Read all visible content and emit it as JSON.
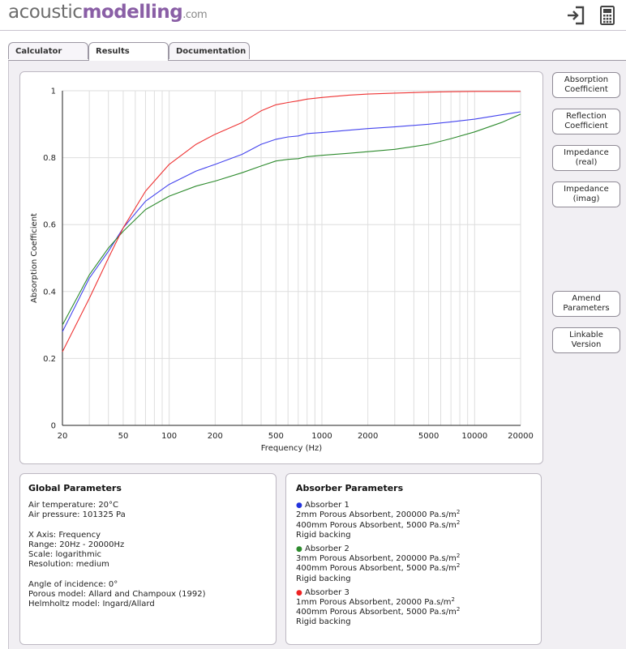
{
  "header": {
    "logo": {
      "part1": "acoustic",
      "part2": "modelling",
      "part3": ".com"
    },
    "icons": [
      "login-icon",
      "calculator-icon"
    ]
  },
  "tabs": [
    {
      "label": "Calculator",
      "active": false
    },
    {
      "label": "Results",
      "active": true
    },
    {
      "label": "Documentation",
      "active": false
    }
  ],
  "side_buttons": {
    "absorption": [
      "Absorption",
      "Coefficient"
    ],
    "reflection": [
      "Reflection",
      "Coefficient"
    ],
    "imp_real": [
      "Impedance",
      "(real)"
    ],
    "imp_imag": [
      "Impedance",
      "(imag)"
    ],
    "amend": [
      "Amend",
      "Parameters"
    ],
    "linkable": [
      "Linkable",
      "Version"
    ]
  },
  "chart_data": {
    "type": "line",
    "xlabel": "Frequency (Hz)",
    "ylabel": "Absorption Coefficient",
    "xscale": "log",
    "xlim": [
      20,
      20000
    ],
    "ylim": [
      0,
      1
    ],
    "xticks": [
      "20",
      "50",
      "100",
      "200",
      "500",
      "1000",
      "2000",
      "5000",
      "10000",
      "20000"
    ],
    "yticks": [
      "0",
      "0.2",
      "0.4",
      "0.6",
      "0.8",
      "1"
    ],
    "grid": true,
    "series": [
      {
        "color": "#4444ee",
        "x": [
          20,
          30,
          40,
          50,
          70,
          100,
          150,
          200,
          300,
          400,
          500,
          600,
          700,
          800,
          1000,
          1500,
          2000,
          3000,
          5000,
          7000,
          10000,
          15000,
          20000
        ],
        "values": [
          0.28,
          0.44,
          0.52,
          0.59,
          0.67,
          0.72,
          0.76,
          0.78,
          0.81,
          0.84,
          0.855,
          0.862,
          0.865,
          0.872,
          0.875,
          0.882,
          0.887,
          0.892,
          0.9,
          0.907,
          0.915,
          0.928,
          0.937
        ]
      },
      {
        "color": "#2e8b2e",
        "x": [
          20,
          30,
          40,
          50,
          70,
          100,
          150,
          200,
          300,
          400,
          500,
          600,
          700,
          800,
          1000,
          1500,
          2000,
          3000,
          5000,
          7000,
          10000,
          15000,
          20000
        ],
        "values": [
          0.3,
          0.45,
          0.53,
          0.58,
          0.645,
          0.685,
          0.715,
          0.73,
          0.755,
          0.775,
          0.79,
          0.795,
          0.797,
          0.803,
          0.807,
          0.813,
          0.818,
          0.825,
          0.84,
          0.857,
          0.877,
          0.905,
          0.93
        ]
      },
      {
        "color": "#ee3333",
        "x": [
          20,
          30,
          40,
          50,
          70,
          100,
          150,
          200,
          300,
          400,
          500,
          600,
          700,
          800,
          1000,
          1500,
          2000,
          3000,
          5000,
          7000,
          10000,
          15000,
          20000
        ],
        "values": [
          0.22,
          0.38,
          0.5,
          0.59,
          0.7,
          0.78,
          0.84,
          0.87,
          0.905,
          0.94,
          0.958,
          0.965,
          0.97,
          0.975,
          0.98,
          0.987,
          0.99,
          0.993,
          0.996,
          0.997,
          0.998,
          0.998,
          0.998
        ]
      }
    ]
  },
  "global": {
    "title": "Global Parameters",
    "lines": [
      "Air temperature: 20°C",
      "Air pressure: 101325 Pa",
      "",
      "X Axis: Frequency",
      "Range: 20Hz - 20000Hz",
      "Scale: logarithmic",
      "Resolution: medium",
      "",
      "Angle of incidence: 0°",
      "Porous model: Allard and Champoux (1992)",
      "Helmholtz model: Ingard/Allard"
    ]
  },
  "absorbers": {
    "title": "Absorber Parameters",
    "items": [
      {
        "name": "Absorber 1",
        "color": "#2233dd",
        "layers": [
          "2mm Porous Absorbent, 200000 Pa.s/m",
          "400mm Porous Absorbent, 5000 Pa.s/m"
        ],
        "backing": "Rigid backing"
      },
      {
        "name": "Absorber 2",
        "color": "#2e8b2e",
        "layers": [
          "3mm Porous Absorbent, 200000 Pa.s/m",
          "400mm Porous Absorbent, 5000 Pa.s/m"
        ],
        "backing": "Rigid backing"
      },
      {
        "name": "Absorber 3",
        "color": "#ee2222",
        "layers": [
          "1mm Porous Absorbent, 20000 Pa.s/m",
          "400mm Porous Absorbent, 5000 Pa.s/m"
        ],
        "backing": "Rigid backing"
      }
    ],
    "superscript": "2",
    "bullet": "●"
  }
}
